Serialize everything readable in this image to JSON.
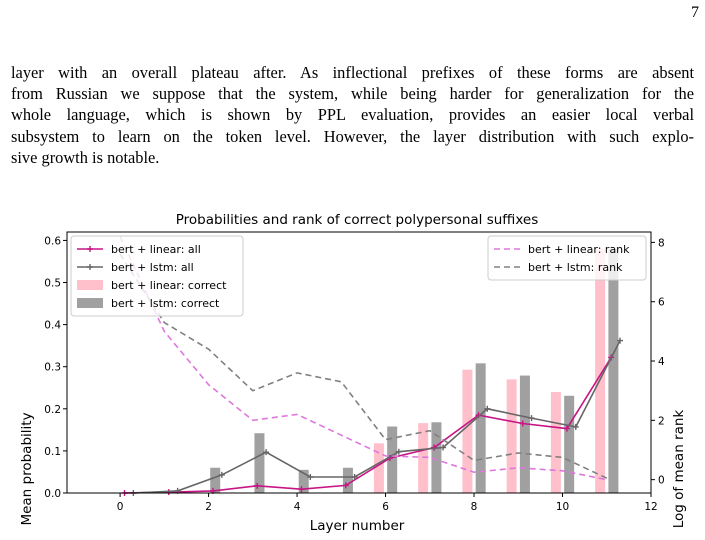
{
  "page": {
    "number": "7"
  },
  "paragraph": {
    "lines": [
      "layer with an overall plateau after. As inflectional prefixes of these forms are absent",
      "from Russian we suppose that the system, while being harder for generalization for the",
      "whole language, which is shown by PPL evaluation, provides an easier local verbal",
      "subsystem to learn on the token level. However, the layer distribution with such explo-",
      "sive growth is notable."
    ]
  },
  "chart_data": {
    "type": "bar",
    "title": "Probabilities and rank of correct polypersonal suffixes",
    "xlabel": "Layer number",
    "ylabel": "Mean probability",
    "y2label": "Log of mean rank",
    "xlim": [
      -1.2,
      12
    ],
    "ylim": [
      0,
      0.62
    ],
    "y2lim": [
      -0.45,
      8.35
    ],
    "x_ticks": [
      0,
      2,
      4,
      6,
      8,
      10,
      12
    ],
    "x_tick_labels": [
      "0",
      "2",
      "4",
      "6",
      "8",
      "10",
      "12"
    ],
    "y_ticks": [
      0.0,
      0.1,
      0.2,
      0.3,
      0.4,
      0.5,
      0.6
    ],
    "y_tick_labels": [
      "0.0",
      "0.1",
      "0.2",
      "0.3",
      "0.4",
      "0.5",
      "0.6"
    ],
    "y2_ticks": [
      0,
      2,
      4,
      6,
      8
    ],
    "y2_tick_labels": [
      "0",
      "2",
      "4",
      "6",
      "8"
    ],
    "layers": [
      0,
      1,
      2,
      3,
      4,
      5,
      6,
      7,
      8,
      9,
      10,
      11
    ],
    "legend_left": "top-left",
    "legend_right": "top-right",
    "series": [
      {
        "name": "bert + linear: correct",
        "kind": "bar",
        "axis": "left",
        "color": "#ffc0cb",
        "offset": -0.15,
        "values": [
          0.0,
          0.0,
          0.0,
          0.0,
          0.0,
          0.0,
          0.118,
          0.166,
          0.293,
          0.27,
          0.24,
          0.58
        ]
      },
      {
        "name": "bert + lstm: correct",
        "kind": "bar",
        "axis": "left",
        "color": "#a0a0a0",
        "offset": 0.15,
        "values": [
          0.0,
          0.0,
          0.06,
          0.142,
          0.055,
          0.06,
          0.158,
          0.168,
          0.308,
          0.279,
          0.231,
          0.58
        ]
      },
      {
        "name": "bert + linear: all",
        "kind": "line",
        "axis": "left",
        "color": "#c71585",
        "offset": 0.1,
        "marker": "+",
        "values": [
          0.0,
          0.002,
          0.005,
          0.017,
          0.009,
          0.018,
          0.083,
          0.108,
          0.185,
          0.165,
          0.153,
          0.322
        ]
      },
      {
        "name": "bert + lstm: all",
        "kind": "line",
        "axis": "left",
        "color": "#666666",
        "offset": 0.3,
        "marker": "+",
        "values": [
          0.0,
          0.005,
          0.043,
          0.097,
          0.038,
          0.038,
          0.098,
          0.108,
          0.2,
          0.178,
          0.157,
          0.362
        ]
      },
      {
        "name": "bert + linear: rank",
        "kind": "line",
        "axis": "right",
        "color": "#dd77dd",
        "offset": 0.0,
        "dash": "6,4",
        "values": [
          8.2,
          5.0,
          3.2,
          2.0,
          2.2,
          1.5,
          0.8,
          0.75,
          0.25,
          0.4,
          0.3,
          0.0
        ]
      },
      {
        "name": "bert + lstm: rank",
        "kind": "line",
        "axis": "right",
        "color": "#808080",
        "offset": 0.0,
        "dash": "6,4",
        "values": [
          7.6,
          5.3,
          4.4,
          3.0,
          3.6,
          3.3,
          1.35,
          1.65,
          0.65,
          0.9,
          0.75,
          0.05
        ]
      }
    ]
  }
}
